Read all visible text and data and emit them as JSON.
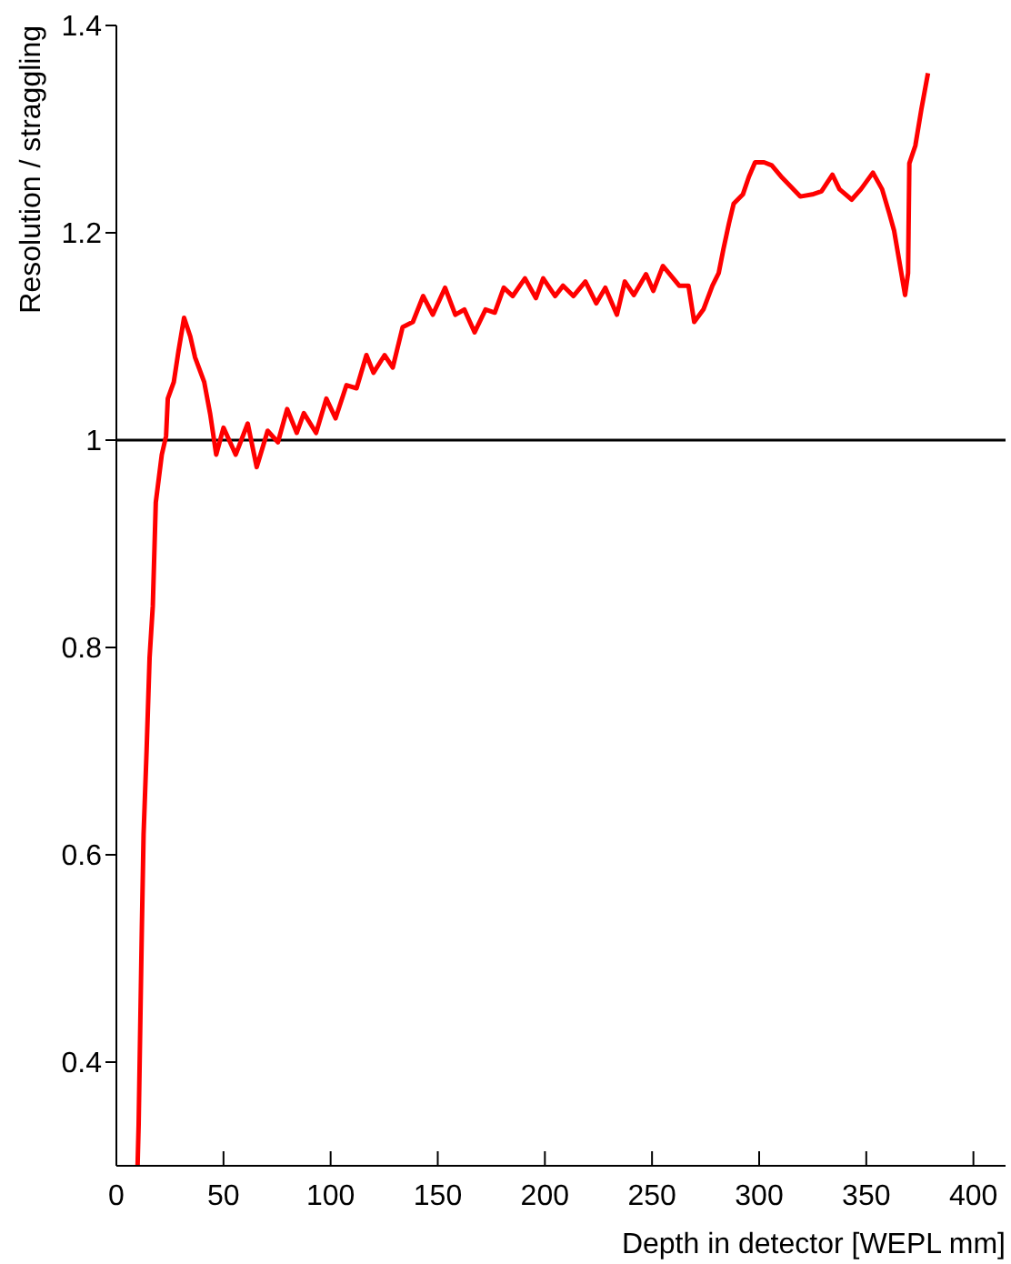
{
  "chart_data": {
    "type": "line",
    "xlabel": "Depth in detector [WEPL mm]",
    "ylabel": "Resolution / straggling",
    "xlim": [
      0,
      415
    ],
    "ylim": [
      0.3,
      1.4
    ],
    "xticks": [
      0,
      50,
      100,
      150,
      200,
      250,
      300,
      350,
      400
    ],
    "yticks": [
      0.4,
      0.6,
      0.8,
      1,
      1.2,
      1.4
    ],
    "marker": "none",
    "line_style": "solid",
    "ref_lines": [
      {
        "axis": "y",
        "value": 1,
        "color": "#000000"
      }
    ],
    "series": [
      {
        "color": "#ff0000",
        "x": [
          9.9,
          10.4,
          11.9,
          12.7,
          14.1,
          15.5,
          17,
          18.4,
          21.2,
          23.2,
          24,
          26.8,
          29,
          31.6,
          34.5,
          36.7,
          41,
          43.8,
          46.6,
          50,
          55.7,
          61.3,
          65.5,
          70.6,
          75.4,
          79.7,
          84.2,
          87.5,
          93.2,
          98,
          102.3,
          107.4,
          112.1,
          116.7,
          120,
          125.2,
          129,
          133.6,
          138.4,
          143.2,
          147.7,
          153.4,
          158.2,
          162.4,
          167.2,
          172.3,
          176.6,
          180.8,
          185,
          190.7,
          195.8,
          199.2,
          204.8,
          208.5,
          213.3,
          218.9,
          224,
          228.2,
          233.6,
          237.3,
          241.5,
          247.2,
          250.6,
          255.1,
          259.9,
          262.7,
          267,
          269.7,
          274,
          278.2,
          281.1,
          283.3,
          285.9,
          288.1,
          292.4,
          295.2,
          298.1,
          302.3,
          305.9,
          310.8,
          315,
          319.2,
          324.8,
          329.1,
          334.2,
          337.5,
          343.2,
          347.5,
          353.1,
          357.4,
          360.7,
          363,
          365.3,
          368.1,
          369.5,
          370.1,
          372.9,
          375.7,
          378.8
        ],
        "values": [
          0.3,
          0.34,
          0.53,
          0.62,
          0.7,
          0.79,
          0.84,
          0.94,
          0.986,
          1.004,
          1.04,
          1.056,
          1.086,
          1.118,
          1.1,
          1.08,
          1.056,
          1.025,
          0.986,
          1.012,
          0.986,
          1.016,
          0.974,
          1.009,
          0.998,
          1.03,
          1.007,
          1.026,
          1.007,
          1.04,
          1.021,
          1.053,
          1.05,
          1.082,
          1.065,
          1.082,
          1.07,
          1.109,
          1.114,
          1.139,
          1.121,
          1.147,
          1.121,
          1.126,
          1.104,
          1.126,
          1.123,
          1.147,
          1.139,
          1.156,
          1.137,
          1.156,
          1.139,
          1.149,
          1.139,
          1.153,
          1.132,
          1.147,
          1.121,
          1.153,
          1.14,
          1.16,
          1.144,
          1.168,
          1.156,
          1.149,
          1.149,
          1.114,
          1.126,
          1.149,
          1.161,
          1.184,
          1.209,
          1.228,
          1.237,
          1.254,
          1.268,
          1.268,
          1.265,
          1.253,
          1.244,
          1.235,
          1.237,
          1.24,
          1.256,
          1.242,
          1.232,
          1.242,
          1.258,
          1.242,
          1.219,
          1.202,
          1.174,
          1.14,
          1.161,
          1.267,
          1.284,
          1.319,
          1.354
        ]
      }
    ]
  }
}
